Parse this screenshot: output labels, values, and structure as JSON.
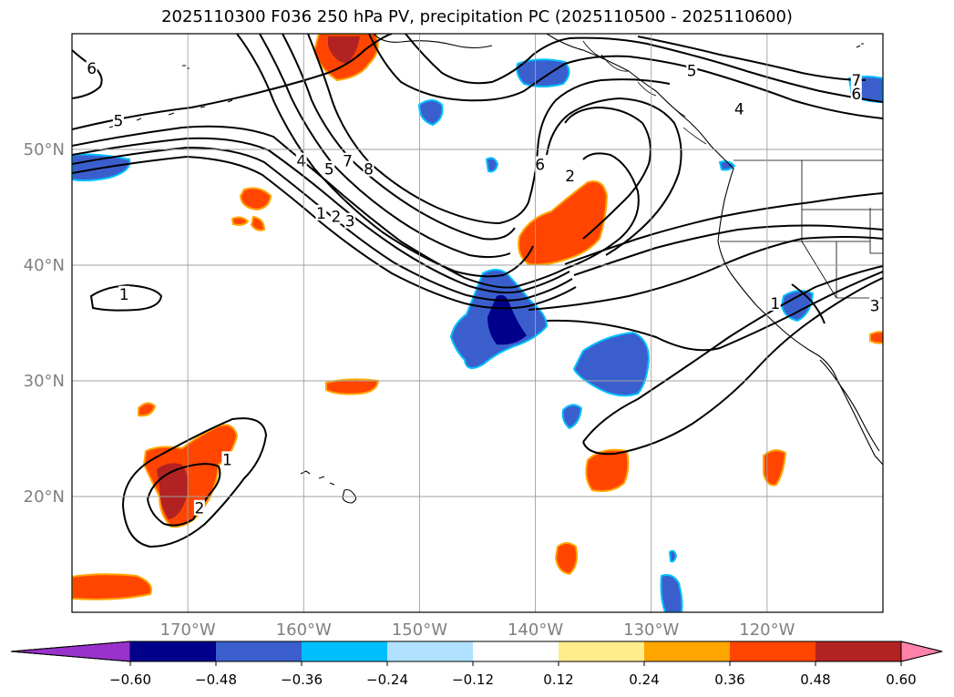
{
  "title": "2025110300 F036 250 hPa PV, precipitation PC (2025110500 - 2025110600)",
  "map": {
    "lon_range": [
      -180,
      -110
    ],
    "lat_range": [
      10,
      60
    ],
    "lon_ticks": [
      {
        "lon": -170,
        "label": "170°W"
      },
      {
        "lon": -160,
        "label": "160°W"
      },
      {
        "lon": -150,
        "label": "150°W"
      },
      {
        "lon": -140,
        "label": "140°W"
      },
      {
        "lon": -130,
        "label": "130°W"
      },
      {
        "lon": -120,
        "label": "120°W"
      }
    ],
    "lat_ticks": [
      {
        "lat": 20,
        "label": "20°N"
      },
      {
        "lat": 30,
        "label": "30°N"
      },
      {
        "lat": 40,
        "label": "40°N"
      },
      {
        "lat": 50,
        "label": "50°N"
      }
    ],
    "grid": true
  },
  "colorbar": {
    "levels": [
      "-0.60",
      "-0.48",
      "-0.36",
      "-0.24",
      "-0.12",
      "0.12",
      "0.24",
      "0.36",
      "0.48",
      "0.60"
    ],
    "colors": [
      "#9932CC",
      "#00008B",
      "#3A5FCD",
      "#00BFFF",
      "#B0E2FF",
      "#FFFFFF",
      "#FFEC8B",
      "#FFA500",
      "#FF4500",
      "#B22222",
      "#FF82AB"
    ],
    "extend": "both"
  },
  "contour_labels": [
    {
      "text": "6",
      "lon": -178.3,
      "lat": 57.0
    },
    {
      "text": "5",
      "lon": -176.0,
      "lat": 52.5
    },
    {
      "text": "4",
      "lon": -160.2,
      "lat": 49.0
    },
    {
      "text": "5",
      "lon": -157.8,
      "lat": 48.3
    },
    {
      "text": "7",
      "lon": -156.2,
      "lat": 49.0
    },
    {
      "text": "8",
      "lon": -154.4,
      "lat": 48.3
    },
    {
      "text": "1",
      "lon": -158.5,
      "lat": 44.5
    },
    {
      "text": "2",
      "lon": -157.2,
      "lat": 44.2
    },
    {
      "text": "3",
      "lon": -156.0,
      "lat": 43.8
    },
    {
      "text": "6",
      "lon": -139.6,
      "lat": 48.7
    },
    {
      "text": "2",
      "lon": -137.0,
      "lat": 47.7
    },
    {
      "text": "5",
      "lon": -126.5,
      "lat": 56.8
    },
    {
      "text": "4",
      "lon": -122.4,
      "lat": 53.5
    },
    {
      "text": "7",
      "lon": -112.3,
      "lat": 56.0
    },
    {
      "text": "6",
      "lon": -112.3,
      "lat": 54.8
    },
    {
      "text": "1",
      "lon": -175.5,
      "lat": 37.5
    },
    {
      "text": "1",
      "lon": -166.6,
      "lat": 23.2
    },
    {
      "text": "2",
      "lon": -169.0,
      "lat": 19.0
    },
    {
      "text": "1",
      "lon": -119.3,
      "lat": 36.7
    },
    {
      "text": "3",
      "lon": -110.7,
      "lat": 36.5
    }
  ],
  "icons": {
    "cbar_extend_low": "triangle-left",
    "cbar_extend_high": "triangle-right"
  }
}
